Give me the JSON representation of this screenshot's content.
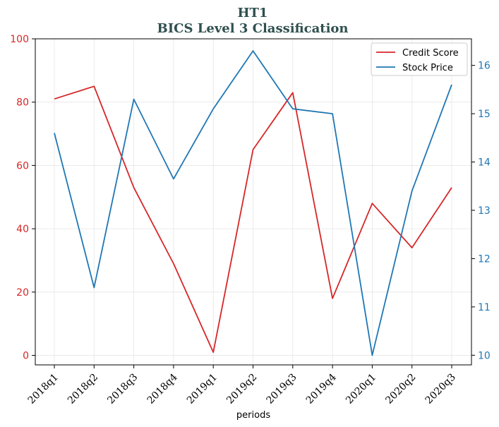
{
  "chart_data": {
    "type": "line",
    "title": "HT1",
    "subtitle": "BICS Level 3 Classification",
    "xlabel": "periods",
    "categories": [
      "2018q1",
      "2018q2",
      "2018q3",
      "2018q4",
      "2019q1",
      "2019q2",
      "2019q3",
      "2019q4",
      "2020q1",
      "2020q2",
      "2020q3"
    ],
    "series": [
      {
        "name": "Credit Score",
        "axis": "left",
        "color": "#d62728",
        "values": [
          81,
          85,
          53,
          29,
          1,
          65,
          83,
          18,
          48,
          34,
          53
        ]
      },
      {
        "name": "Stock Price",
        "axis": "right",
        "color": "#1f77b4",
        "values": [
          14.6,
          11.4,
          15.3,
          13.65,
          15.1,
          16.3,
          15.1,
          15.0,
          10.0,
          13.4,
          15.6
        ]
      }
    ],
    "ylim_left": [
      -3,
      100
    ],
    "yticks_left": [
      "0",
      "20",
      "40",
      "60",
      "80",
      "100"
    ],
    "yticks_left_values": [
      0,
      20,
      40,
      60,
      80,
      100
    ],
    "left_axis_color": "#d62728",
    "ylim_right": [
      9.8,
      16.55
    ],
    "yticks_right": [
      "10",
      "11",
      "12",
      "13",
      "14",
      "15",
      "16"
    ],
    "yticks_right_values": [
      10,
      11,
      12,
      13,
      14,
      15,
      16
    ],
    "right_axis_color": "#1f77b4",
    "grid": true,
    "legend_position": "top-right"
  }
}
